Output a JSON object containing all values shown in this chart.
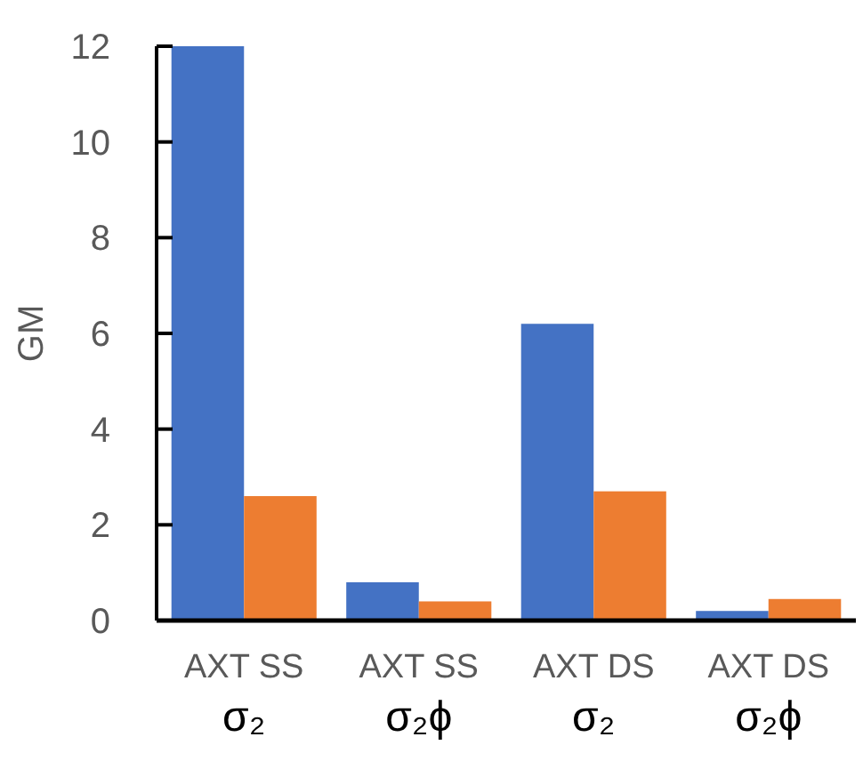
{
  "chart_data": {
    "type": "bar",
    "ylabel": "GM",
    "categories": [
      "AXT SS\nσ₂",
      "AXT SS\nσ₂ϕ",
      "AXT DS\nσ₂",
      "AXT DS\nσ₂ϕ"
    ],
    "series": [
      {
        "color": "#4472c4",
        "values": [
          12,
          0.8,
          6.2,
          0.2
        ]
      },
      {
        "color": "#ed7d31",
        "values": [
          2.6,
          0.4,
          2.7,
          0.45
        ]
      }
    ],
    "ylim": [
      0,
      12
    ],
    "yticks": [
      0,
      2,
      4,
      6,
      8,
      10,
      12
    ],
    "grid": false
  }
}
